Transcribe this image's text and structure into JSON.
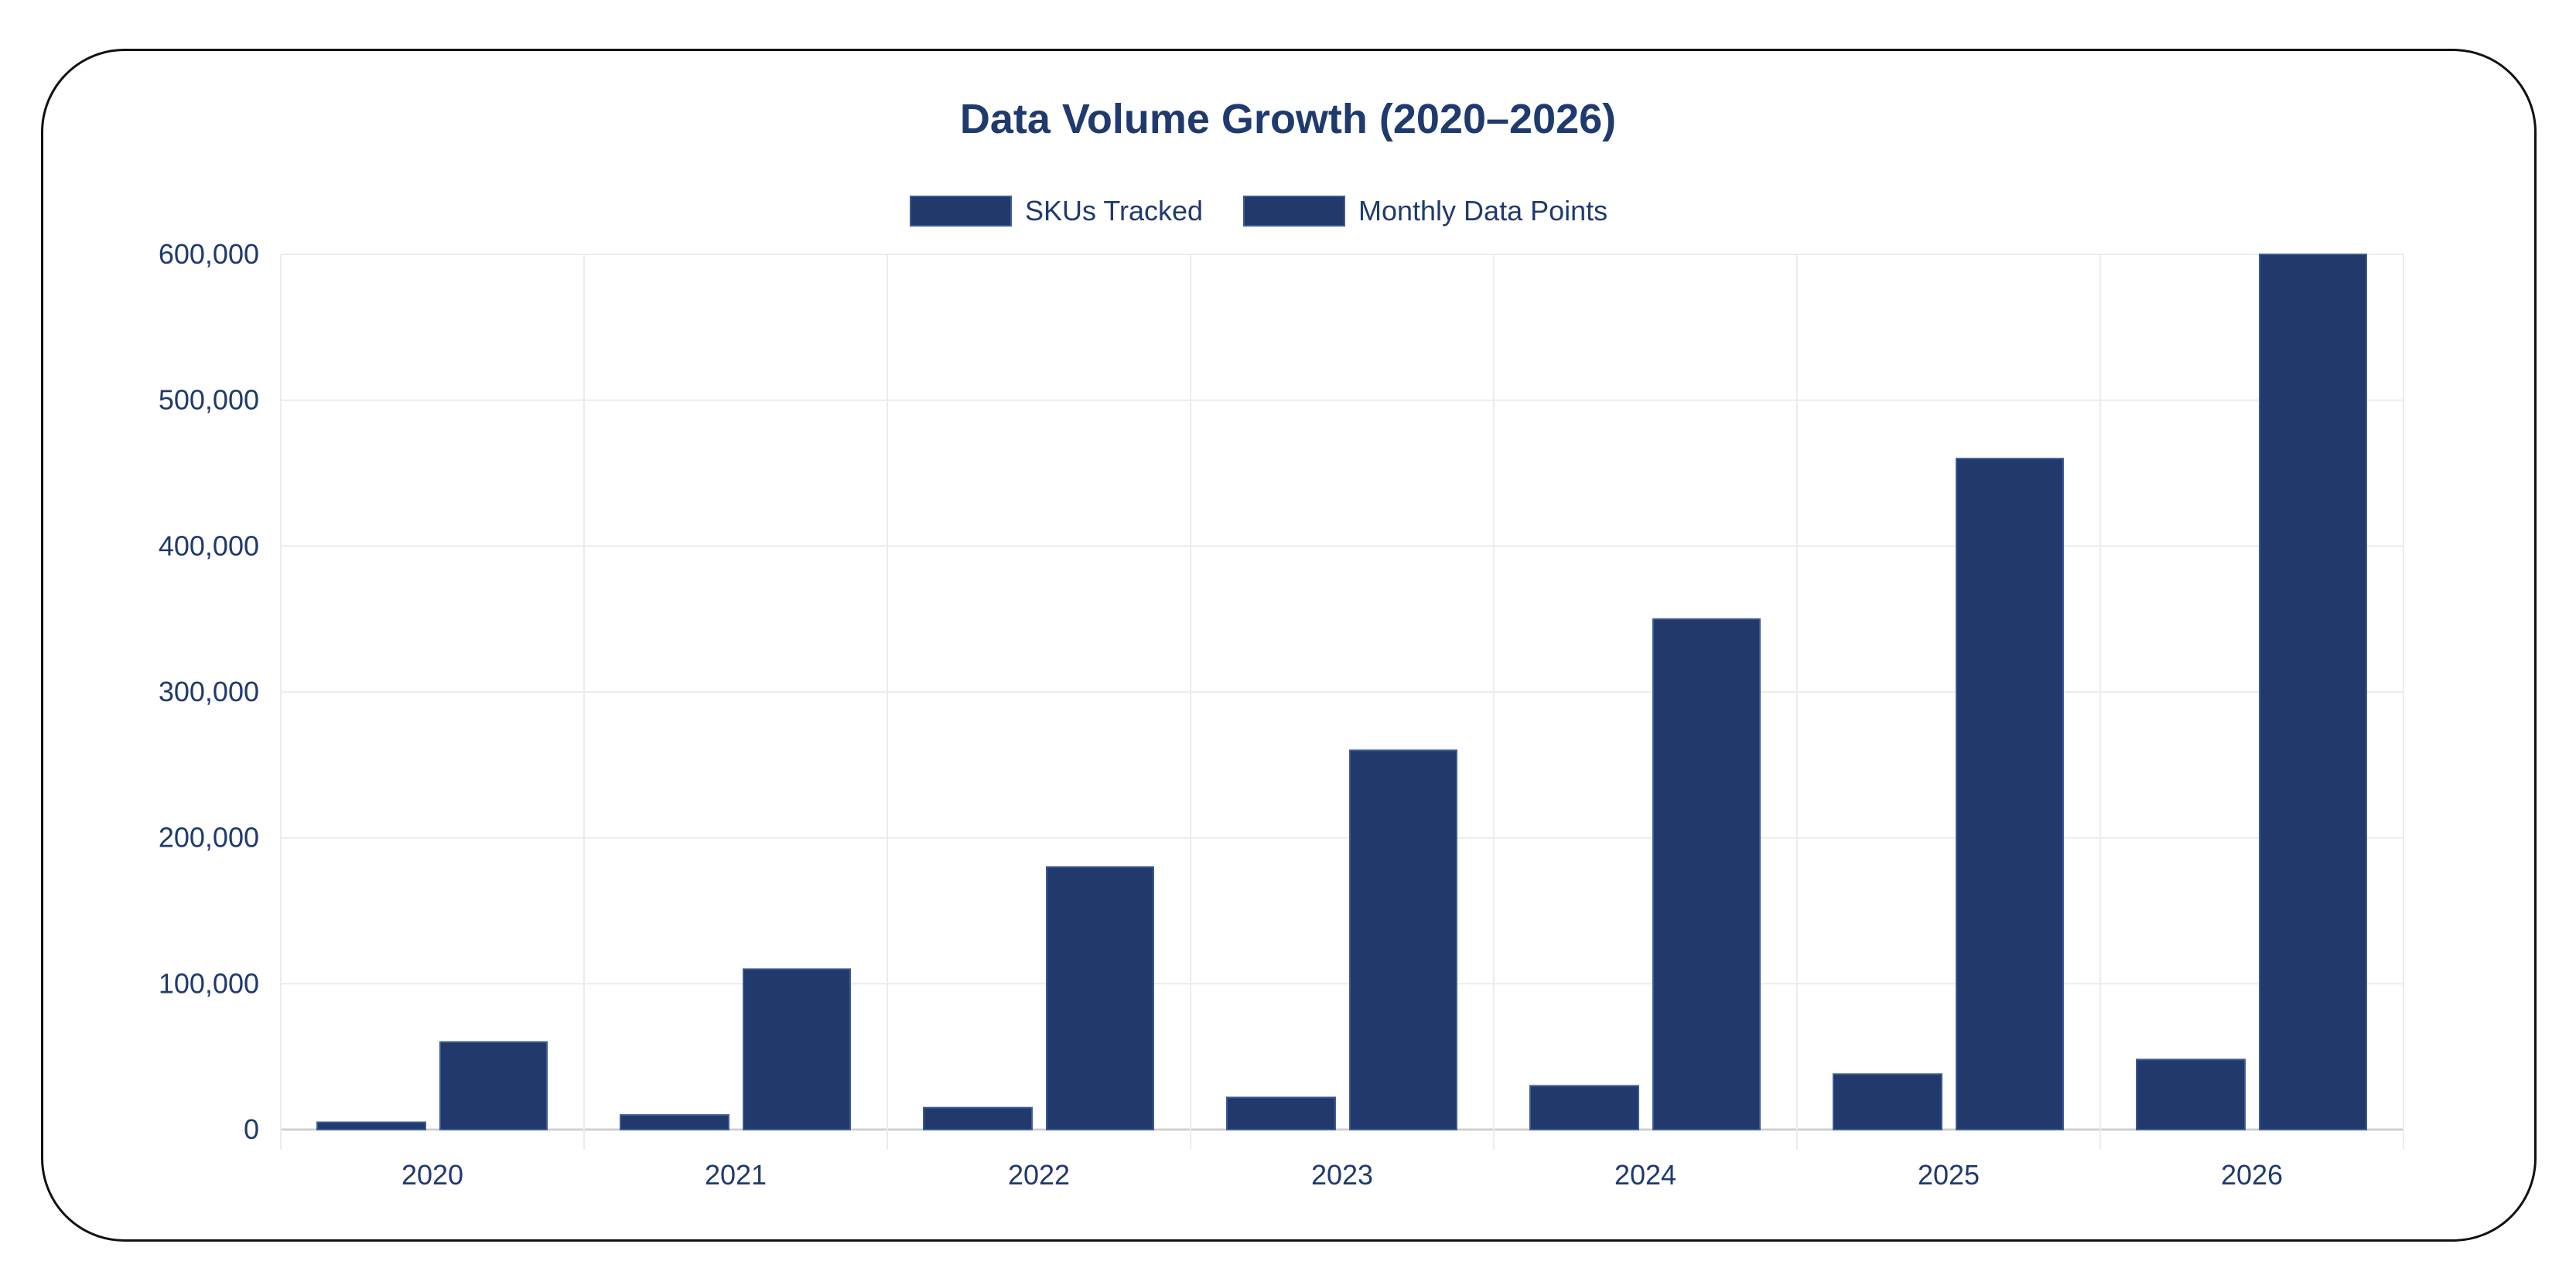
{
  "chart_data": {
    "type": "bar",
    "title": "Data Volume Growth (2020–2026)",
    "xlabel": "",
    "ylabel": "",
    "categories": [
      "2020",
      "2021",
      "2022",
      "2023",
      "2024",
      "2025",
      "2026"
    ],
    "series": [
      {
        "name": "SKUs Tracked",
        "values": [
          5000,
          10000,
          15000,
          22000,
          30000,
          38000,
          48000
        ],
        "color": "#213a6b"
      },
      {
        "name": "Monthly Data Points",
        "values": [
          60000,
          110000,
          180000,
          260000,
          350000,
          460000,
          600000
        ],
        "color": "#213a6b"
      }
    ],
    "ylim": [
      0,
      600000
    ],
    "yticks": [
      0,
      100000,
      200000,
      300000,
      400000,
      500000,
      600000
    ],
    "ytick_labels": [
      "0",
      "100,000",
      "200,000",
      "300,000",
      "400,000",
      "500,000",
      "600,000"
    ],
    "grid": true,
    "legend_position": "top-center",
    "text_color": "#1f3a6e"
  }
}
